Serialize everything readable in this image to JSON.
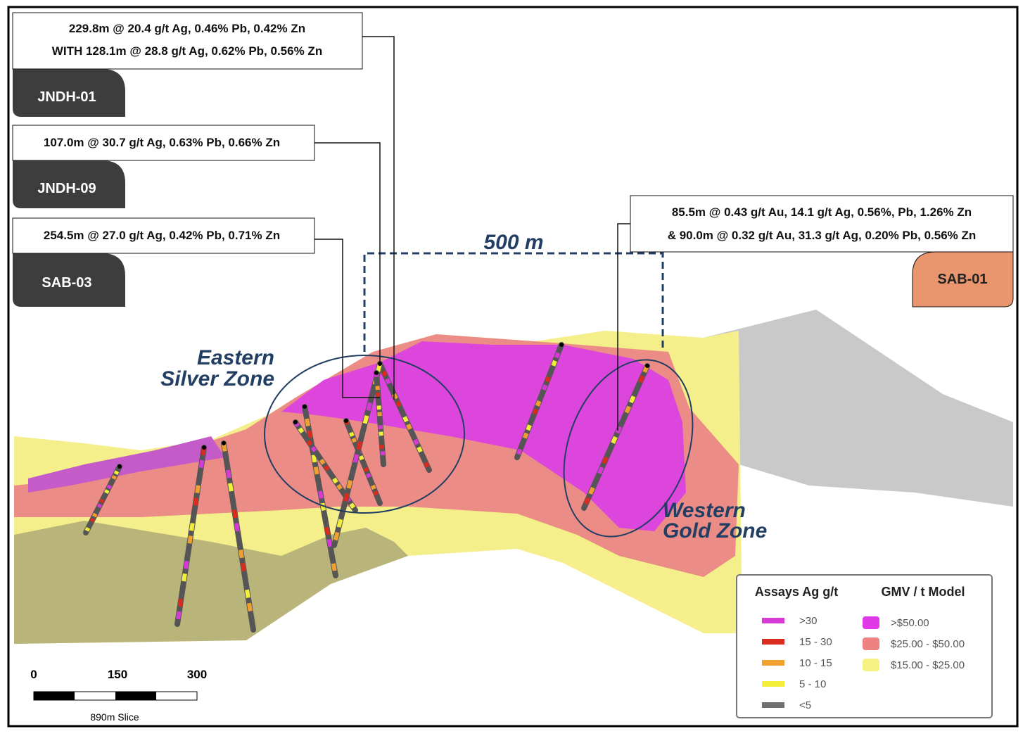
{
  "callouts": [
    {
      "hole": "JNDH-01",
      "lines": [
        "229.8m @ 20.4 g/t Ag, 0.46% Pb, 0.42% Zn",
        "WITH 128.1m @ 28.8 g/t Ag, 0.62% Pb, 0.56% Zn"
      ]
    },
    {
      "hole": "JNDH-09",
      "lines": [
        "107.0m @ 30.7 g/t Ag, 0.63% Pb, 0.66% Zn"
      ]
    },
    {
      "hole": "SAB-03",
      "lines": [
        "254.5m @ 27.0 g/t Ag, 0.42% Pb, 0.71% Zn"
      ]
    },
    {
      "hole": "SAB-01",
      "lines": [
        "85.5m @ 0.43 g/t Au, 14.1 g/t Ag, 0.56%, Pb, 1.26% Zn",
        "& 90.0m @ 0.32 g/t Au, 31.3 g/t Ag, 0.20% Pb, 0.56% Zn"
      ]
    }
  ],
  "distance_label": "500 m",
  "zones": [
    {
      "lines": [
        "Eastern",
        "Silver Zone"
      ]
    },
    {
      "lines": [
        "Western",
        "Gold Zone"
      ]
    }
  ],
  "legend": {
    "assays": {
      "title": "Assays Ag g/t",
      "items": [
        {
          "label": ">30",
          "color": "#d63ad6"
        },
        {
          "label": "15 - 30",
          "color": "#d92b1e"
        },
        {
          "label": "10 - 15",
          "color": "#f0a030"
        },
        {
          "label": "5 - 10",
          "color": "#f2ee3a"
        },
        {
          "label": "<5",
          "color": "#707070"
        }
      ]
    },
    "gmv": {
      "title": "GMV / t Model",
      "items": [
        {
          "label": ">$50.00",
          "color": "#e03ae8"
        },
        {
          "label": "$25.00 - $50.00",
          "color": "#ee8282"
        },
        {
          "label": "$15.00 - $25.00",
          "color": "#f7f382"
        }
      ]
    }
  },
  "scale_bar": {
    "ticks": [
      "0",
      "150",
      "300"
    ],
    "caption": "890m Slice"
  }
}
